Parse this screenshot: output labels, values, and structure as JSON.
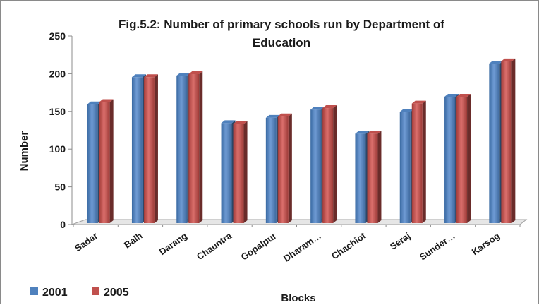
{
  "chart_data": {
    "type": "bar",
    "title": "Fig.5.2: Number of primary schools run by Department of Education",
    "title_lines": [
      "Fig.5.2: Number of primary schools run by Department of",
      "Education"
    ],
    "xlabel": "Blocks",
    "ylabel": "Number",
    "ylim": [
      0,
      250
    ],
    "yticks": [
      0,
      50,
      100,
      150,
      200,
      250
    ],
    "categories": [
      "Sadar",
      "Balh",
      "Darang",
      "Chauntra",
      "Gopalpur",
      "Dharam…",
      "Chachiot",
      "Seraj",
      "Sunder…",
      "Karsog"
    ],
    "series": [
      {
        "name": "2001",
        "color": "#4F81BD",
        "values": [
          166,
          202,
          204,
          141,
          148,
          159,
          127,
          156,
          176,
          220
        ]
      },
      {
        "name": "2005",
        "color": "#C0504D",
        "values": [
          169,
          202,
          206,
          140,
          150,
          161,
          127,
          167,
          176,
          223
        ]
      }
    ],
    "grid": false,
    "legend_position": "bottom-left",
    "style": "3d-clustered-column"
  }
}
